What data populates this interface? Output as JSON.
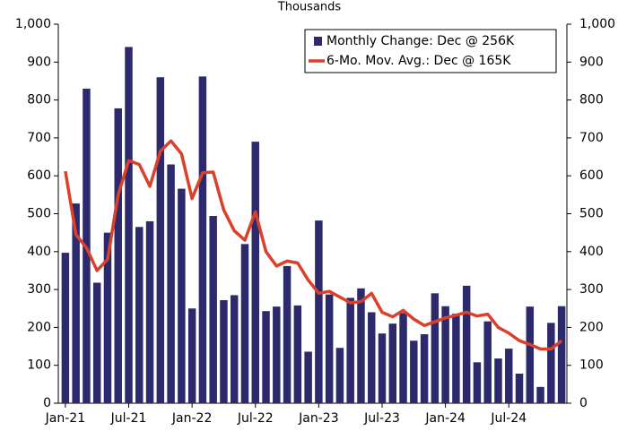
{
  "chart_data": {
    "type": "bar-line",
    "title": "Thousands",
    "categories": [
      "Jan-21",
      null,
      null,
      null,
      null,
      null,
      "Jul-21",
      null,
      null,
      null,
      null,
      null,
      "Jan-22",
      null,
      null,
      null,
      null,
      null,
      "Jul-22",
      null,
      null,
      null,
      null,
      null,
      "Jan-23",
      null,
      null,
      null,
      null,
      null,
      "Jul-23",
      null,
      null,
      null,
      null,
      null,
      "Jan-24",
      null,
      null,
      null,
      null,
      null,
      "Jul-24",
      null,
      null,
      null,
      null,
      null
    ],
    "series": [
      {
        "name": "Monthly Change: Dec @ 256K",
        "type": "bar",
        "color": "#2c2a6d",
        "values": [
          397,
          527,
          830,
          318,
          450,
          778,
          940,
          465,
          480,
          860,
          630,
          566,
          250,
          862,
          494,
          272,
          285,
          420,
          690,
          243,
          255,
          362,
          258,
          136,
          482,
          287,
          146,
          278,
          303,
          240,
          184,
          210,
          238,
          165,
          182,
          290,
          256,
          236,
          310,
          108,
          216,
          118,
          144,
          78,
          255,
          43,
          212,
          256
        ]
      },
      {
        "name": "6-Mo. Mov. Avg.: Dec @ 165K",
        "type": "line",
        "color": "#d9412b",
        "values": [
          612,
          445,
          410,
          350,
          380,
          550,
          640,
          630,
          572,
          665,
          692,
          658,
          540,
          608,
          610,
          510,
          455,
          430,
          505,
          400,
          362,
          375,
          370,
          325,
          290,
          295,
          280,
          265,
          268,
          290,
          240,
          228,
          245,
          222,
          205,
          215,
          225,
          232,
          240,
          230,
          235,
          200,
          185,
          165,
          155,
          143,
          143,
          165
        ]
      }
    ],
    "ylim": [
      0,
      1000
    ],
    "yticks": [
      0,
      100,
      200,
      300,
      400,
      500,
      600,
      700,
      800,
      900,
      {
        "value": 1000,
        "label": "1,000"
      }
    ],
    "y2lim": [
      0,
      1000
    ],
    "y2ticks": [
      0,
      100,
      200,
      300,
      400,
      500,
      600,
      700,
      800,
      900,
      {
        "value": 1000,
        "label": "1,000"
      }
    ],
    "legend": "upper right"
  }
}
